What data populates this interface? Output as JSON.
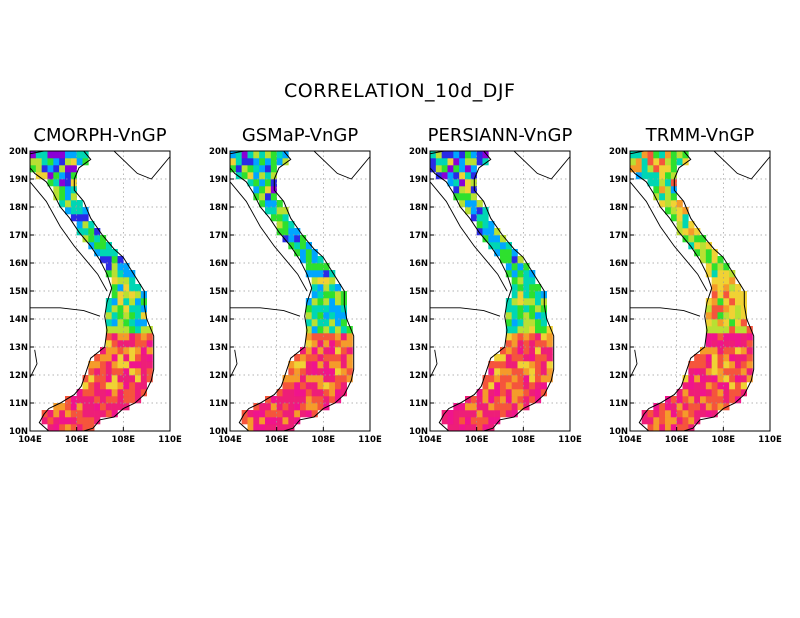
{
  "title": "CORRELATION_10d_DJF",
  "panels": [
    {
      "title": "CMORPH-VnGP",
      "seed": 11
    },
    {
      "title": "GSMaP-VnGP",
      "seed": 23
    },
    {
      "title": "PERSIANN-VnGP",
      "seed": 37
    },
    {
      "title": "TRMM-VnGP",
      "seed": 53
    }
  ],
  "axes": {
    "lat_labels": [
      "10N",
      "11N",
      "12N",
      "13N",
      "14N",
      "15N",
      "16N",
      "17N",
      "18N",
      "19N",
      "20N"
    ],
    "lon_labels": [
      "104E",
      "106E",
      "108E",
      "110E"
    ]
  },
  "colors": {
    "scale": [
      "#8a00d6",
      "#2a2ae6",
      "#00a6ff",
      "#00d6b4",
      "#2ee02e",
      "#b8e033",
      "#f0d234",
      "#f59b2a",
      "#f5553c",
      "#ee1e78",
      "#f0148c"
    ],
    "land_outline": "#000000",
    "grid": "#9a9a9a"
  }
}
